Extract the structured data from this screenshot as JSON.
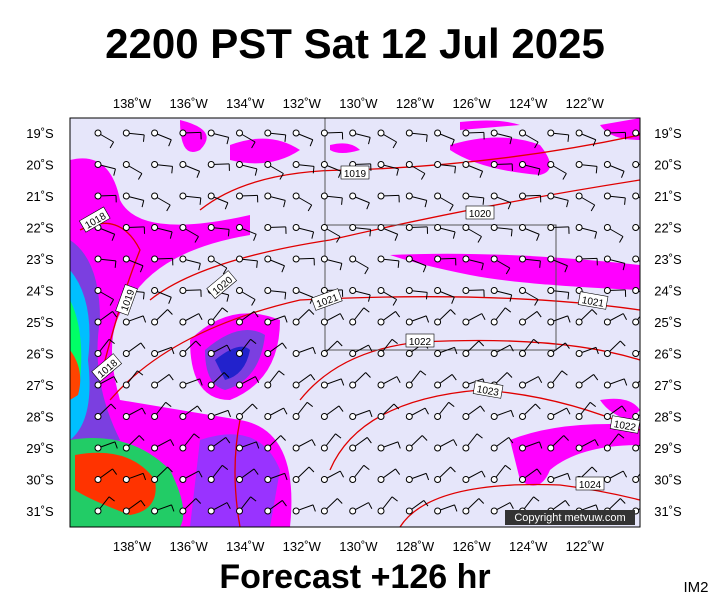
{
  "title": "2200 PST Sat 12 Jul 2025",
  "footer": "Forecast +126 hr",
  "corner": "IM2",
  "copyright": "Copyright metvuw.com",
  "longitudes": [
    "138˚W",
    "136˚W",
    "134˚W",
    "132˚W",
    "130˚W",
    "128˚W",
    "126˚W",
    "124˚W",
    "122˚W"
  ],
  "latitudes": [
    "19˚S",
    "20˚S",
    "21˚S",
    "22˚S",
    "23˚S",
    "24˚S",
    "25˚S",
    "26˚S",
    "27˚S",
    "28˚S",
    "29˚S",
    "30˚S",
    "31˚S"
  ],
  "isobars": [
    "1019",
    "1018",
    "1020",
    "1020",
    "1019",
    "1021",
    "1021",
    "1022",
    "1018",
    "1023",
    "1022",
    "1024"
  ]
}
